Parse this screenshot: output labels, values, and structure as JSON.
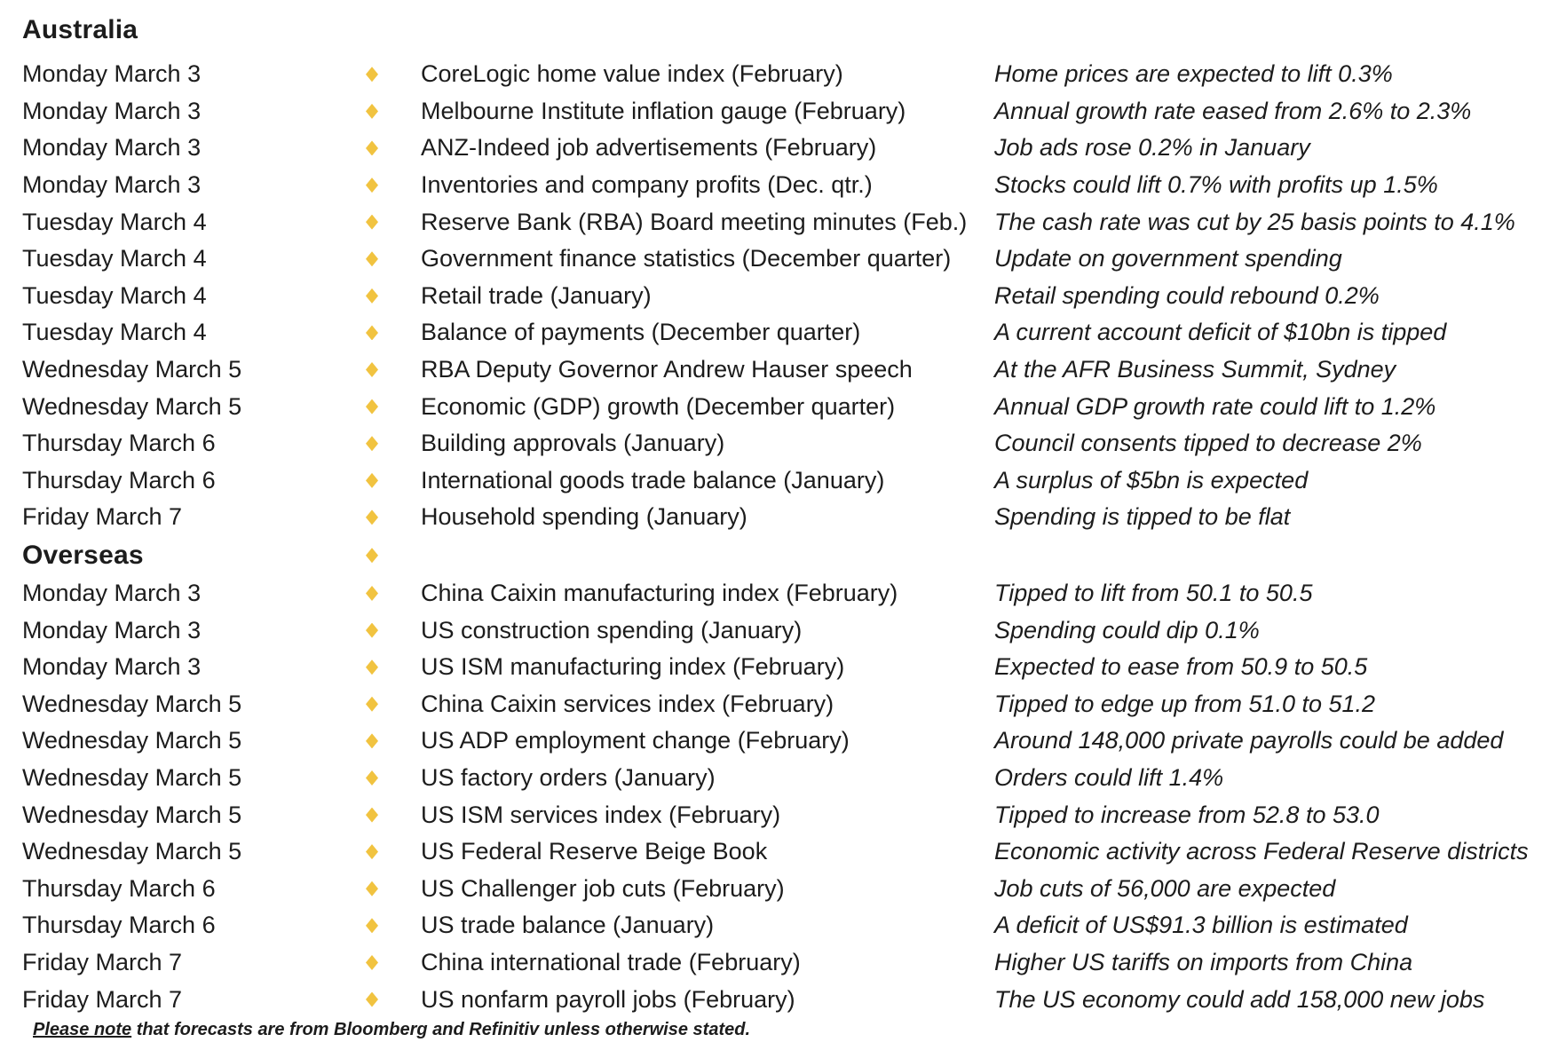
{
  "colors": {
    "bullet": "#F1C340",
    "text": "#1c1c1c",
    "background": "#ffffff"
  },
  "sections": [
    {
      "heading": "Australia",
      "heading_bullet": false,
      "rows": [
        {
          "date": "Monday March 3",
          "event": "CoreLogic home value index (February)",
          "forecast": "Home prices are expected to lift 0.3%"
        },
        {
          "date": "Monday March 3",
          "event": "Melbourne Institute inflation gauge (February)",
          "forecast": "Annual growth rate eased from 2.6% to 2.3%"
        },
        {
          "date": "Monday March 3",
          "event": "ANZ-Indeed job advertisements (February)",
          "forecast": "Job ads rose 0.2% in January"
        },
        {
          "date": "Monday March 3",
          "event": "Inventories and company profits (Dec. qtr.)",
          "forecast": "Stocks could lift 0.7% with profits up 1.5%"
        },
        {
          "date": "Tuesday March 4",
          "event": "Reserve Bank (RBA) Board meeting minutes (Feb.)",
          "forecast": "The cash rate was cut by 25 basis points to 4.1%"
        },
        {
          "date": "Tuesday March 4",
          "event": "Government finance statistics (December quarter)",
          "forecast": "Update on government spending"
        },
        {
          "date": "Tuesday March 4",
          "event": "Retail trade (January)",
          "forecast": "Retail spending could rebound 0.2%"
        },
        {
          "date": "Tuesday March 4",
          "event": "Balance of payments (December quarter)",
          "forecast": "A current account deficit of $10bn is tipped"
        },
        {
          "date": "Wednesday March 5",
          "event": "RBA Deputy Governor Andrew Hauser speech",
          "forecast": "At the AFR Business Summit, Sydney"
        },
        {
          "date": "Wednesday March 5",
          "event": "Economic (GDP) growth (December quarter)",
          "forecast": "Annual GDP growth rate could lift to 1.2%"
        },
        {
          "date": "Thursday March 6",
          "event": "Building approvals (January)",
          "forecast": "Council consents tipped to decrease 2%"
        },
        {
          "date": "Thursday March 6",
          "event": "International goods trade balance (January)",
          "forecast": "A surplus of $5bn is expected"
        },
        {
          "date": "Friday March 7",
          "event": "Household spending (January)",
          "forecast": "Spending is tipped to be flat"
        }
      ]
    },
    {
      "heading": "Overseas",
      "heading_bullet": true,
      "rows": [
        {
          "date": "Monday March 3",
          "event": "China Caixin manufacturing index (February)",
          "forecast": "Tipped to lift from 50.1 to 50.5"
        },
        {
          "date": "Monday March 3",
          "event": "US construction spending (January)",
          "forecast": "Spending could dip 0.1%"
        },
        {
          "date": "Monday March 3",
          "event": "US ISM manufacturing index (February)",
          "forecast": "Expected to ease from 50.9 to 50.5"
        },
        {
          "date": "Wednesday March 5",
          "event": "China Caixin services index (February)",
          "forecast": "Tipped to edge up from 51.0 to 51.2"
        },
        {
          "date": "Wednesday March 5",
          "event": "US ADP employment change (February)",
          "forecast": "Around 148,000 private payrolls could be added"
        },
        {
          "date": "Wednesday March 5",
          "event": "US factory orders (January)",
          "forecast": "Orders could lift 1.4%"
        },
        {
          "date": "Wednesday March 5",
          "event": "US ISM services index (February)",
          "forecast": "Tipped to increase from 52.8 to 53.0"
        },
        {
          "date": "Wednesday March 5",
          "event": "US Federal Reserve Beige Book",
          "forecast": "Economic activity across Federal Reserve districts"
        },
        {
          "date": "Thursday March 6",
          "event": "US Challenger job cuts (February)",
          "forecast": "Job cuts of 56,000 are expected"
        },
        {
          "date": "Thursday March 6",
          "event": "US trade balance (January)",
          "forecast": "A deficit of US$91.3 billion is estimated"
        },
        {
          "date": "Friday March 7",
          "event": "China international trade (February)",
          "forecast": "Higher US tariffs on imports from China"
        },
        {
          "date": "Friday March 7",
          "event": "US nonfarm payroll jobs (February)",
          "forecast": "The US economy could add 158,000 new jobs"
        }
      ]
    }
  ],
  "footer": {
    "lead": "Please note",
    "rest": " that forecasts are from Bloomberg and Refinitiv unless otherwise stated."
  }
}
